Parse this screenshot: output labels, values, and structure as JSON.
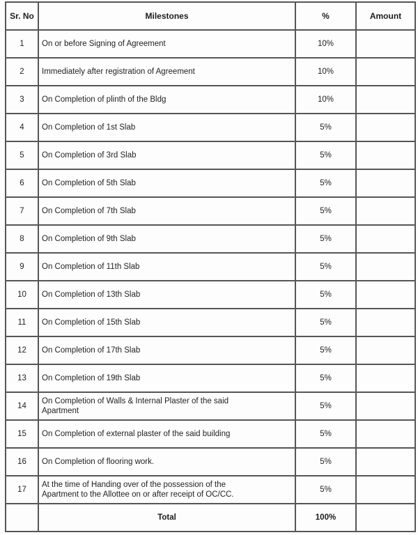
{
  "table": {
    "headers": {
      "sr_no": "Sr. No",
      "milestones": "Milestones",
      "percent": "%",
      "amount": "Amount"
    },
    "rows": [
      {
        "sr": "1",
        "milestone": "On or before Signing of Agreement",
        "pct": "10%",
        "amount": ""
      },
      {
        "sr": "2",
        "milestone": "Immediately after registration of Agreement",
        "pct": "10%",
        "amount": ""
      },
      {
        "sr": "3",
        "milestone": "On Completion of plinth of the Bldg",
        "pct": "10%",
        "amount": ""
      },
      {
        "sr": "4",
        "milestone": "On Completion of 1st Slab",
        "pct": "5%",
        "amount": ""
      },
      {
        "sr": "5",
        "milestone": "On Completion of 3rd Slab",
        "pct": "5%",
        "amount": ""
      },
      {
        "sr": "6",
        "milestone": "On Completion of 5th Slab",
        "pct": "5%",
        "amount": ""
      },
      {
        "sr": "7",
        "milestone": "On Completion of 7th Slab",
        "pct": "5%",
        "amount": ""
      },
      {
        "sr": "8",
        "milestone": "On Completion of 9th Slab",
        "pct": "5%",
        "amount": ""
      },
      {
        "sr": "9",
        "milestone": "On Completion of 11th Slab",
        "pct": "5%",
        "amount": ""
      },
      {
        "sr": "10",
        "milestone": "On Completion of 13th Slab",
        "pct": "5%",
        "amount": ""
      },
      {
        "sr": "11",
        "milestone": "On Completion of 15th Slab",
        "pct": "5%",
        "amount": ""
      },
      {
        "sr": "12",
        "milestone": "On Completion of 17th Slab",
        "pct": "5%",
        "amount": ""
      },
      {
        "sr": "13",
        "milestone": "On Completion of 19th Slab",
        "pct": "5%",
        "amount": ""
      },
      {
        "sr": "14",
        "milestone": "On Completion of Walls & Internal Plaster of the said\nApartment",
        "pct": "5%",
        "amount": ""
      },
      {
        "sr": "15",
        "milestone": "On Completion of external plaster of the said building",
        "pct": "5%",
        "amount": ""
      },
      {
        "sr": "16",
        "milestone": "On Completion of flooring work.",
        "pct": "5%",
        "amount": ""
      },
      {
        "sr": "17",
        "milestone": "At the time of Handing over of the possession of the\nApartment to the Allottee on or after receipt of OC/CC.",
        "pct": "5%",
        "amount": ""
      }
    ],
    "total": {
      "sr": "",
      "label": "Total",
      "pct": "100%",
      "amount": ""
    }
  },
  "colors": {
    "border": "#565656",
    "text": "#222222",
    "background": "#fdfdfd"
  }
}
